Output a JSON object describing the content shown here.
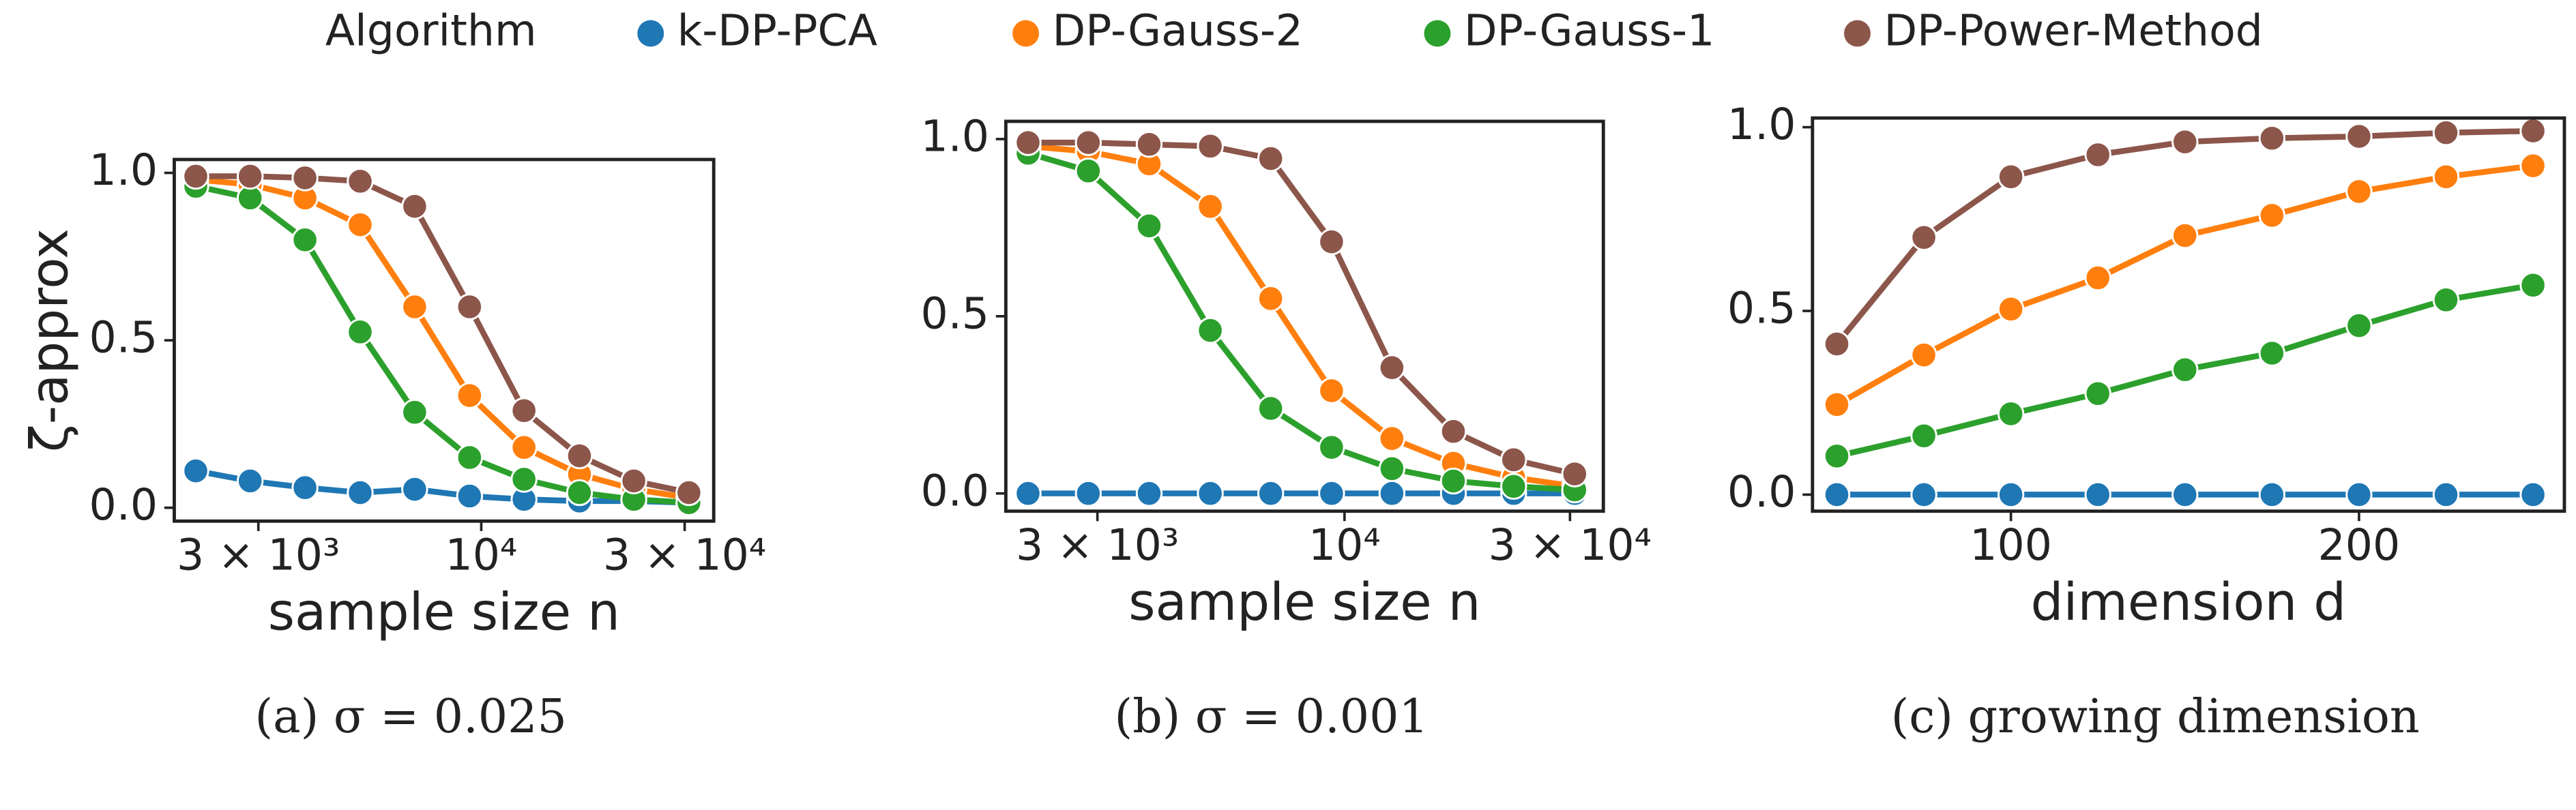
{
  "legend": {
    "title": "Algorithm",
    "loc": "upper center"
  },
  "chart_data": [
    {
      "type": "line",
      "caption": "(a) σ = 0.025",
      "xlabel": "sample size n",
      "ylabel": "ζ-approx",
      "xscale": "log",
      "x": [
        2140,
        2870,
        3860,
        5200,
        6980,
        9390,
        12600,
        17000,
        22800,
        30700
      ],
      "xlim": [
        1905,
        35100
      ],
      "xticks": [
        {
          "value": 3000,
          "label": "3 × 10³"
        },
        {
          "value": 10000,
          "label": "10⁴"
        },
        {
          "value": 30000,
          "label": "3 × 10⁴"
        }
      ],
      "ylim": [
        -0.04,
        1.04
      ],
      "yticks": [
        {
          "value": 0,
          "label": "0.0"
        },
        {
          "value": 0.5,
          "label": "0.5"
        },
        {
          "value": 1,
          "label": "1.0"
        }
      ],
      "series": [
        {
          "name": "k-DP-PCA",
          "color": "#1f77b4",
          "values": [
            0.11,
            0.08,
            0.06,
            0.045,
            0.055,
            0.035,
            0.025,
            0.02,
            0.02,
            0.015
          ]
        },
        {
          "name": "DP-Gauss-2",
          "color": "#ff7f0e",
          "values": [
            0.98,
            0.965,
            0.925,
            0.845,
            0.6,
            0.335,
            0.18,
            0.1,
            0.055,
            0.03
          ]
        },
        {
          "name": "DP-Gauss-1",
          "color": "#2ca02c",
          "values": [
            0.96,
            0.925,
            0.8,
            0.525,
            0.285,
            0.15,
            0.085,
            0.045,
            0.025,
            0.015
          ]
        },
        {
          "name": "DP-Power-Method",
          "color": "#8c564b",
          "values": [
            0.99,
            0.99,
            0.985,
            0.975,
            0.9,
            0.6,
            0.29,
            0.155,
            0.08,
            0.045
          ]
        }
      ]
    },
    {
      "type": "line",
      "caption": "(b) σ = 0.001",
      "xlabel": "sample size n",
      "xscale": "log",
      "x": [
        2140,
        2870,
        3860,
        5200,
        6980,
        9390,
        12600,
        17000,
        22800,
        30700
      ],
      "xlim": [
        1920,
        35300
      ],
      "xticks": [
        {
          "value": 3000,
          "label": "3 × 10³"
        },
        {
          "value": 10000,
          "label": "10⁴"
        },
        {
          "value": 30000,
          "label": "3 × 10⁴"
        }
      ],
      "ylim": [
        -0.05,
        1.05
      ],
      "yticks": [
        {
          "value": 0,
          "label": "0.0"
        },
        {
          "value": 0.5,
          "label": "0.5"
        },
        {
          "value": 1,
          "label": "1.0"
        }
      ],
      "series": [
        {
          "name": "k-DP-PCA",
          "color": "#1f77b4",
          "values": [
            0,
            0,
            0,
            0,
            0,
            0,
            0,
            0,
            0,
            0
          ]
        },
        {
          "name": "DP-Gauss-2",
          "color": "#ff7f0e",
          "values": [
            0.98,
            0.965,
            0.93,
            0.81,
            0.55,
            0.29,
            0.155,
            0.085,
            0.045,
            0.02
          ]
        },
        {
          "name": "DP-Gauss-1",
          "color": "#2ca02c",
          "values": [
            0.96,
            0.91,
            0.755,
            0.46,
            0.24,
            0.13,
            0.07,
            0.035,
            0.02,
            0.01
          ]
        },
        {
          "name": "DP-Power-Method",
          "color": "#8c564b",
          "values": [
            0.99,
            0.99,
            0.985,
            0.98,
            0.945,
            0.71,
            0.355,
            0.175,
            0.095,
            0.055
          ]
        }
      ]
    },
    {
      "type": "line",
      "caption": "(c) growing dimension",
      "xlabel": "dimension d",
      "xscale": "linear",
      "x": [
        50,
        75,
        100,
        125,
        150,
        175,
        200,
        225,
        250
      ],
      "xlim": [
        43,
        259
      ],
      "xticks": [
        100,
        200
      ],
      "ylim": [
        -0.045,
        1.025
      ],
      "yticks": [
        {
          "value": 0,
          "label": "0.0"
        },
        {
          "value": 0.5,
          "label": "0.5"
        },
        {
          "value": 1,
          "label": "1.0"
        }
      ],
      "series": [
        {
          "name": "k-DP-PCA",
          "color": "#1f77b4",
          "values": [
            0,
            0,
            0,
            0,
            0,
            0,
            0,
            0,
            0
          ]
        },
        {
          "name": "DP-Gauss-2",
          "color": "#ff7f0e",
          "values": [
            0.245,
            0.38,
            0.505,
            0.59,
            0.705,
            0.76,
            0.825,
            0.865,
            0.895
          ]
        },
        {
          "name": "DP-Gauss-1",
          "color": "#2ca02c",
          "values": [
            0.105,
            0.16,
            0.22,
            0.275,
            0.34,
            0.385,
            0.46,
            0.53,
            0.57
          ]
        },
        {
          "name": "DP-Power-Method",
          "color": "#8c564b",
          "values": [
            0.41,
            0.7,
            0.865,
            0.925,
            0.96,
            0.97,
            0.975,
            0.985,
            0.99
          ]
        }
      ]
    }
  ]
}
